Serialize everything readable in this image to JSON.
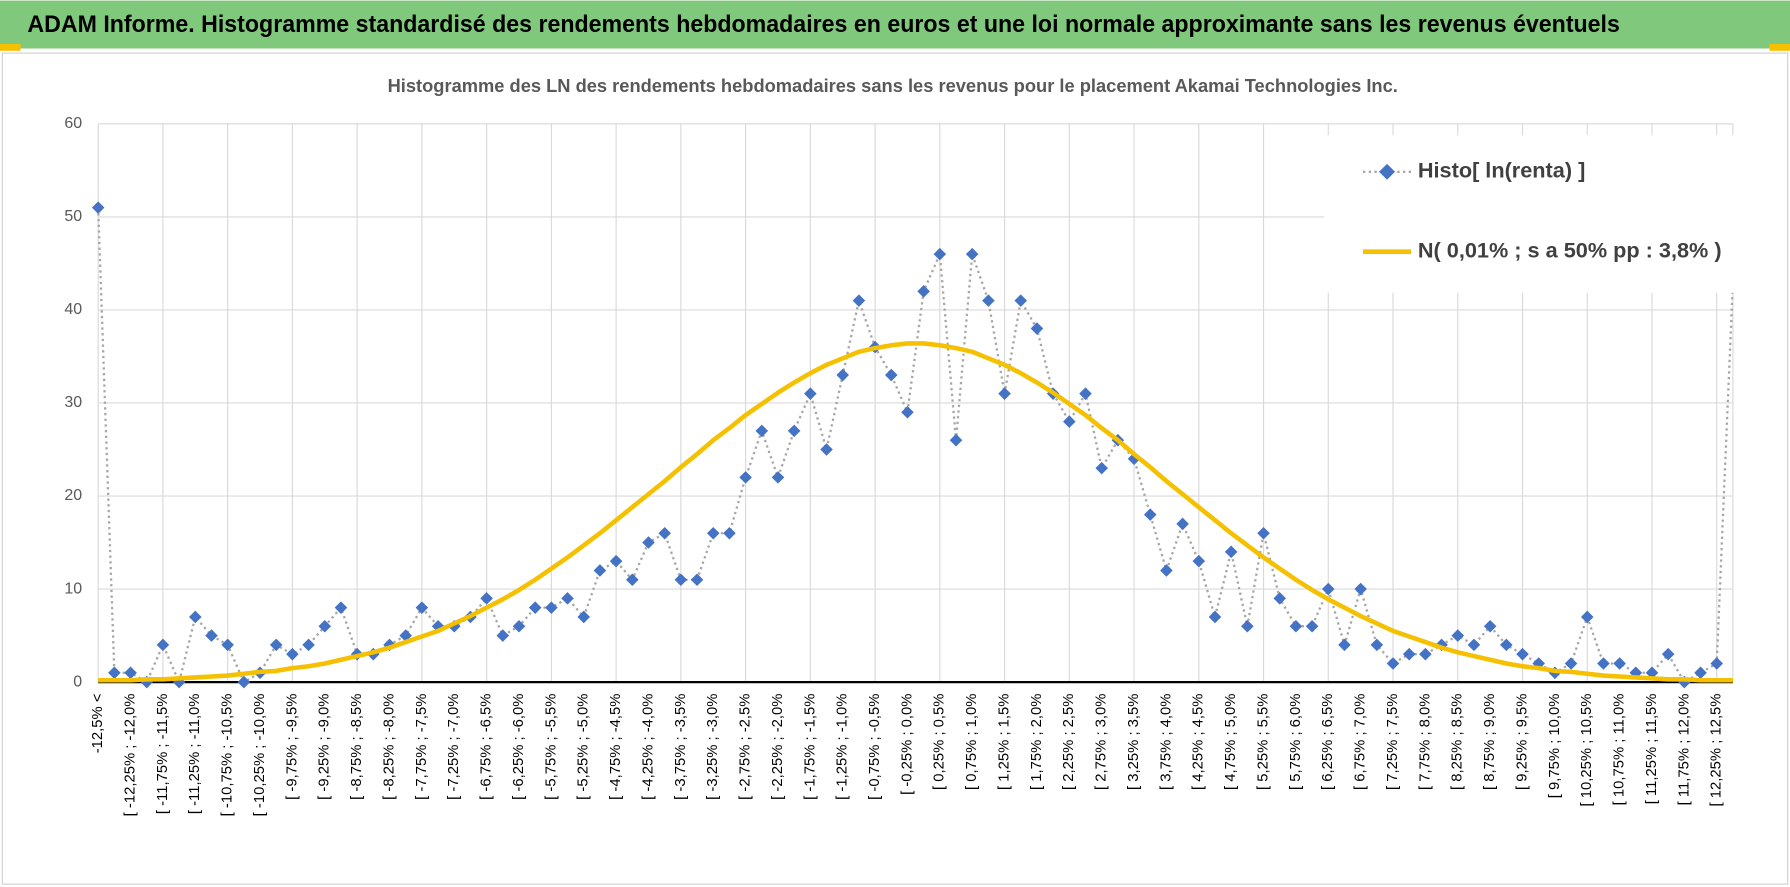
{
  "header": {
    "title": "ADAM Informe. Histogramme standardisé des rendements hebdomadaires en euros et une loi normale approximante sans les revenus éventuels"
  },
  "chart_data": {
    "type": "line",
    "title": "Histogramme des LN des rendements hebdomadaires sans les revenus pour le placement Akamai Technologies Inc.",
    "categories": [
      "-12,5% <",
      null,
      "[ -12,25% ; -12,0%",
      null,
      "[ -11,75% ; -11,5%",
      null,
      "[ -11,25% ; -11,0%",
      null,
      "[ -10,75% ; -10,5%",
      null,
      "[ -10,25% ; -10,0%",
      null,
      "[ -9,75% ; -9,5%",
      null,
      "[ -9,25% ; -9,0%",
      null,
      "[ -8,75% ; -8,5%",
      null,
      "[ -8,25% ; -8,0%",
      null,
      "[ -7,75% ; -7,5%",
      null,
      "[ -7,25% ; -7,0%",
      null,
      "[ -6,75% ; -6,5%",
      null,
      "[ -6,25% ; -6,0%",
      null,
      "[ -5,75% ; -5,5%",
      null,
      "[ -5,25% ; -5,0%",
      null,
      "[ -4,75% ; -4,5%",
      null,
      "[ -4,25% ; -4,0%",
      null,
      "[ -3,75% ; -3,5%",
      null,
      "[ -3,25% ; -3,0%",
      null,
      "[ -2,75% ; -2,5%",
      null,
      "[ -2,25% ; -2,0%",
      null,
      "[ -1,75% ; -1,5%",
      null,
      "[ -1,25% ; -1,0%",
      null,
      "[ -0,75% ; -0,5%",
      null,
      "[ -0,25% ; 0,0%",
      null,
      "[ 0,25% ; 0,5%",
      null,
      "[ 0,75% ; 1,0%",
      null,
      "[ 1,25% ; 1,5%",
      null,
      "[ 1,75% ; 2,0%",
      null,
      "[ 2,25% ; 2,5%",
      null,
      "[ 2,75% ; 3,0%",
      null,
      "[ 3,25% ; 3,5%",
      null,
      "[ 3,75% ; 4,0%",
      null,
      "[ 4,25% ; 4,5%",
      null,
      "[ 4,75% ; 5,0%",
      null,
      "[ 5,25% ; 5,5%",
      null,
      "[ 5,75% ; 6,0%",
      null,
      "[ 6,25% ; 6,5%",
      null,
      "[ 6,75% ; 7,0%",
      null,
      "[ 7,25% ; 7,5%",
      null,
      "[ 7,75% ; 8,0%",
      null,
      "[ 8,25% ; 8,5%",
      null,
      "[ 8,75% ; 9,0%",
      null,
      "[ 9,25% ; 9,5%",
      null,
      "[ 9,75% ; 10,0%",
      null,
      "[ 10,25% ; 10,5%",
      null,
      "[ 10,75% ; 11,0%",
      null,
      "[ 11,25% ; 11,5%",
      null,
      "[ 11,75% ; 12,0%",
      null,
      "[ 12,25% ; 12,5%",
      null
    ],
    "series": [
      {
        "name": "Histo[ ln(renta) ]",
        "color": "#4472c4",
        "values": [
          51,
          1,
          1,
          0,
          4,
          0,
          7,
          5,
          4,
          0,
          1,
          4,
          3,
          4,
          6,
          8,
          3,
          3,
          4,
          5,
          8,
          6,
          6,
          7,
          9,
          5,
          6,
          8,
          8,
          9,
          7,
          12,
          13,
          11,
          15,
          16,
          11,
          11,
          16,
          16,
          22,
          27,
          22,
          27,
          31,
          25,
          33,
          41,
          36,
          33,
          29,
          42,
          46,
          26,
          46,
          41,
          31,
          41,
          38,
          31,
          28,
          31,
          23,
          26,
          24,
          18,
          12,
          17,
          13,
          7,
          14,
          6,
          16,
          9,
          6,
          6,
          10,
          4,
          10,
          4,
          2,
          3,
          3,
          4,
          5,
          4,
          6,
          4,
          3,
          2,
          1,
          2,
          7,
          2,
          2,
          1,
          1,
          3,
          0,
          1,
          2,
          43
        ]
      },
      {
        "name": "N( 0,01% ; s a 50% pp : 3,8% )",
        "color": "#f5c000",
        "values": [
          0.2,
          0.2,
          0.2,
          0.3,
          0.3,
          0.4,
          0.5,
          0.6,
          0.7,
          0.9,
          1.1,
          1.2,
          1.5,
          1.7,
          2.0,
          2.4,
          2.8,
          3.2,
          3.7,
          4.3,
          4.9,
          5.5,
          6.3,
          7.1,
          8.0,
          8.9,
          9.9,
          11.0,
          12.2,
          13.4,
          14.7,
          16.0,
          17.4,
          18.8,
          20.2,
          21.6,
          23.1,
          24.5,
          26.0,
          27.3,
          28.7,
          29.9,
          31.1,
          32.2,
          33.2,
          34.1,
          34.8,
          35.5,
          35.9,
          36.2,
          36.4,
          36.4,
          36.2,
          35.9,
          35.5,
          34.8,
          34.1,
          33.2,
          32.2,
          31.1,
          29.9,
          28.7,
          27.3,
          26.0,
          24.5,
          23.1,
          21.6,
          20.2,
          18.8,
          17.4,
          16.0,
          14.7,
          13.4,
          12.2,
          11.0,
          9.9,
          8.9,
          8.0,
          7.1,
          6.3,
          5.5,
          4.9,
          4.3,
          3.7,
          3.2,
          2.8,
          2.4,
          2.0,
          1.7,
          1.5,
          1.2,
          1.1,
          0.9,
          0.7,
          0.6,
          0.5,
          0.4,
          0.3,
          0.3,
          0.2,
          0.2,
          0.2
        ]
      }
    ],
    "ylim": [
      0,
      60
    ],
    "yticks": [
      0,
      10,
      20,
      30,
      40,
      50,
      60
    ],
    "grid": true,
    "legend": "upper right"
  }
}
